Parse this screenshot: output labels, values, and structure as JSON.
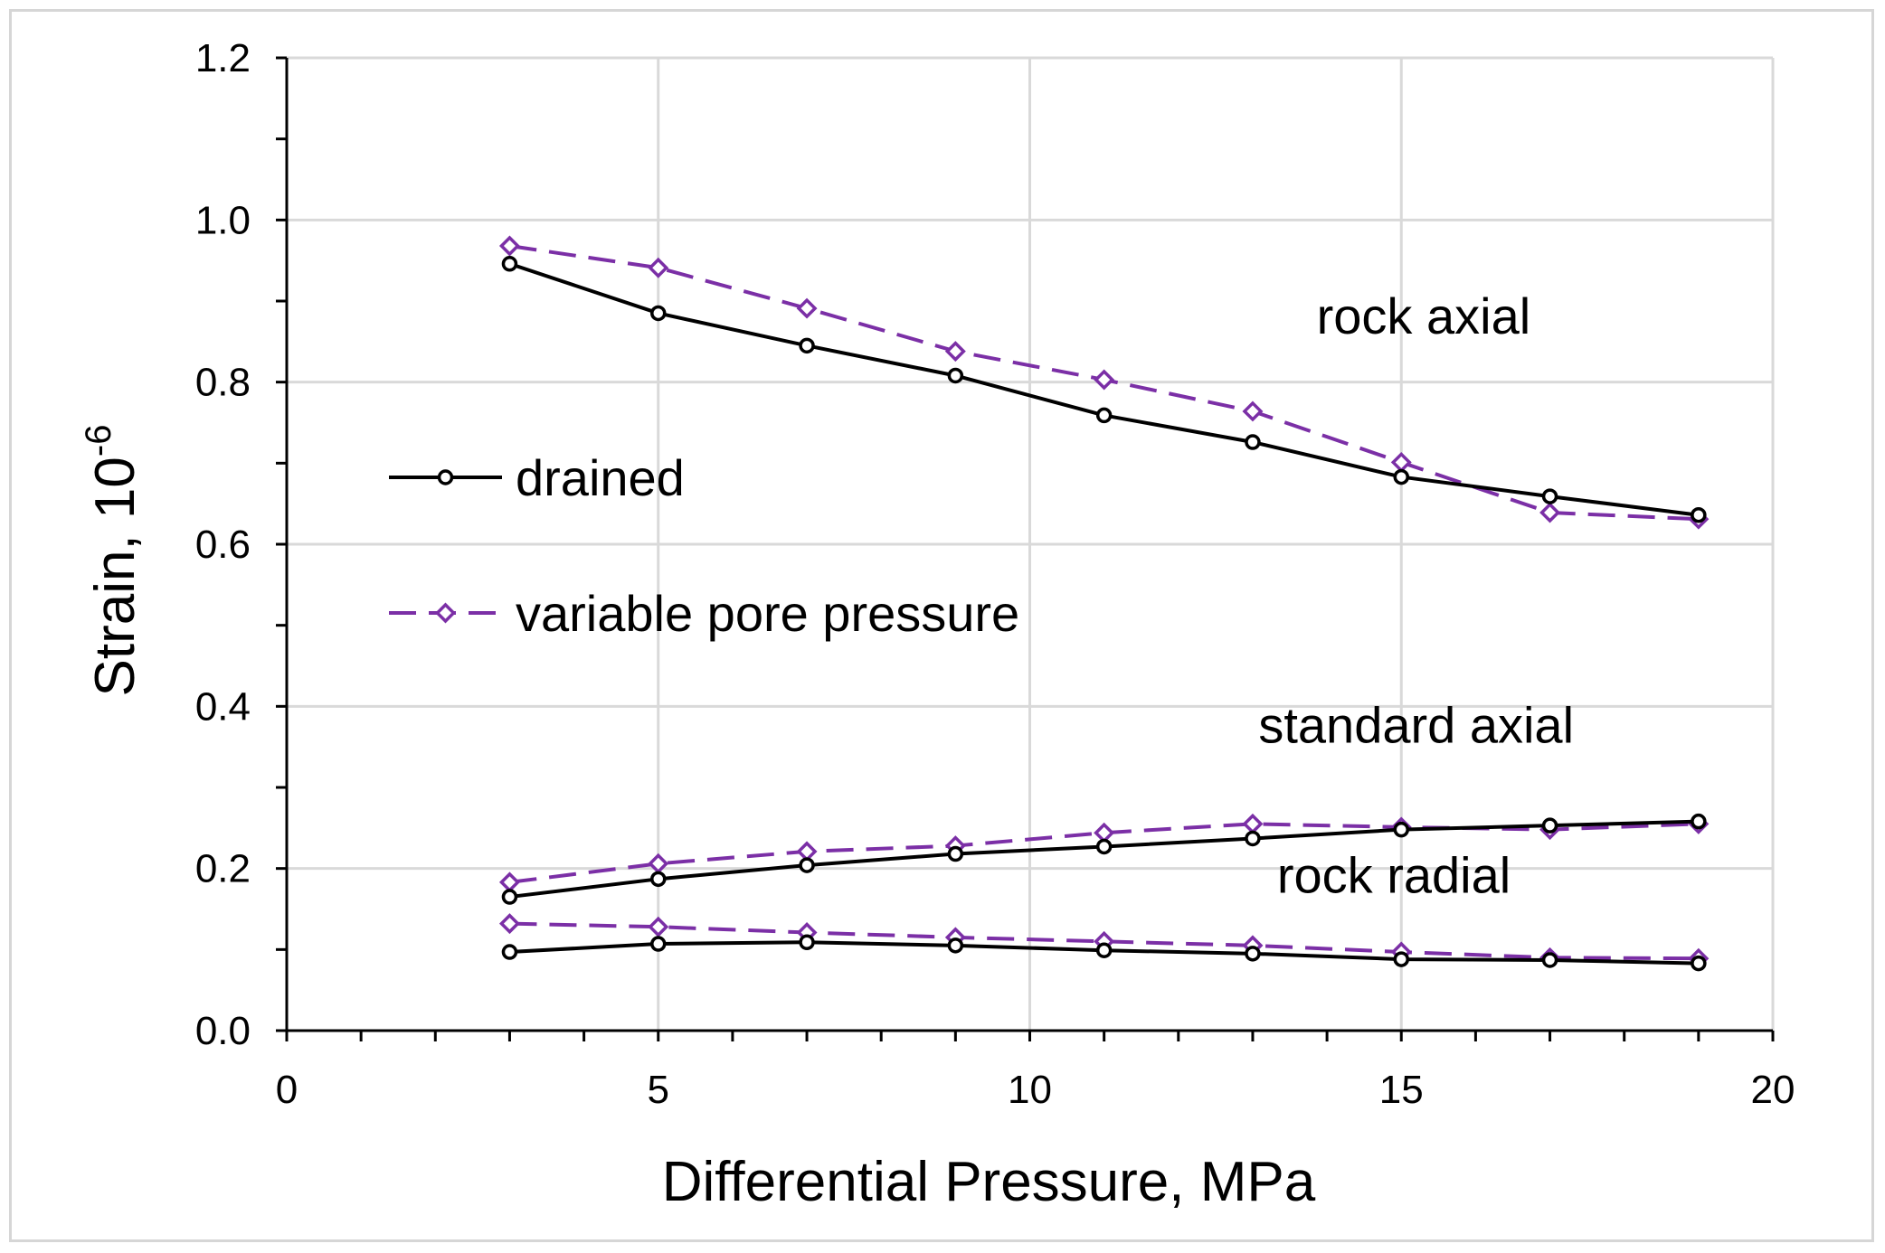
{
  "chart_data": {
    "type": "line",
    "xlabel": "Differential Pressure, MPa",
    "ylabel_main": "Strain, 10",
    "ylabel_exponent": "-6",
    "xlim": [
      0,
      20
    ],
    "ylim": [
      0,
      1.2
    ],
    "x_ticks": [
      0,
      5,
      10,
      15,
      20
    ],
    "x_tick_labels": [
      "0",
      "5",
      "10",
      "15",
      "20"
    ],
    "x_minor_step": 1,
    "y_ticks": [
      0,
      0.2,
      0.4,
      0.6,
      0.8,
      1.0,
      1.2
    ],
    "y_tick_labels": [
      "0.0",
      "0.2",
      "0.4",
      "0.6",
      "0.8",
      "1.0",
      "1.2"
    ],
    "y_minor_step": 0.1,
    "grid": true,
    "x": [
      3,
      5,
      7,
      9,
      11,
      13,
      15,
      17,
      19
    ],
    "series": [
      {
        "name": "drained",
        "group": "rock axial",
        "style": "drained",
        "values": [
          0.946,
          0.885,
          0.845,
          0.808,
          0.759,
          0.726,
          0.683,
          0.659,
          0.636
        ]
      },
      {
        "name": "variable pore pressure",
        "group": "rock axial",
        "style": "variable",
        "values": [
          0.968,
          0.941,
          0.891,
          0.838,
          0.803,
          0.764,
          0.701,
          0.639,
          0.631
        ]
      },
      {
        "name": "drained",
        "group": "standard axial",
        "style": "drained",
        "values": [
          0.165,
          0.187,
          0.204,
          0.218,
          0.227,
          0.237,
          0.248,
          0.253,
          0.258
        ]
      },
      {
        "name": "variable pore pressure",
        "group": "standard axial",
        "style": "variable",
        "values": [
          0.183,
          0.206,
          0.221,
          0.228,
          0.244,
          0.255,
          0.251,
          0.248,
          0.255
        ]
      },
      {
        "name": "drained",
        "group": "rock radial",
        "style": "drained",
        "values": [
          0.097,
          0.107,
          0.109,
          0.105,
          0.099,
          0.095,
          0.088,
          0.087,
          0.083
        ]
      },
      {
        "name": "variable pore pressure",
        "group": "rock radial",
        "style": "variable",
        "values": [
          0.132,
          0.128,
          0.121,
          0.115,
          0.11,
          0.105,
          0.097,
          0.09,
          0.089
        ]
      }
    ],
    "annotations": [
      {
        "text": "rock axial",
        "x": 15.3,
        "y": 0.86
      },
      {
        "text": "standard axial",
        "x": 15.2,
        "y": 0.355
      },
      {
        "text": "rock radial",
        "x": 14.9,
        "y": 0.17
      }
    ],
    "legend": {
      "placement": "middle-left",
      "items": [
        {
          "label": "drained",
          "style": "drained"
        },
        {
          "label": "variable pore pressure",
          "style": "variable"
        }
      ]
    },
    "colors": {
      "drained": "#000000",
      "variable": "#7b2fa6",
      "grid": "#d9d9d9"
    }
  }
}
